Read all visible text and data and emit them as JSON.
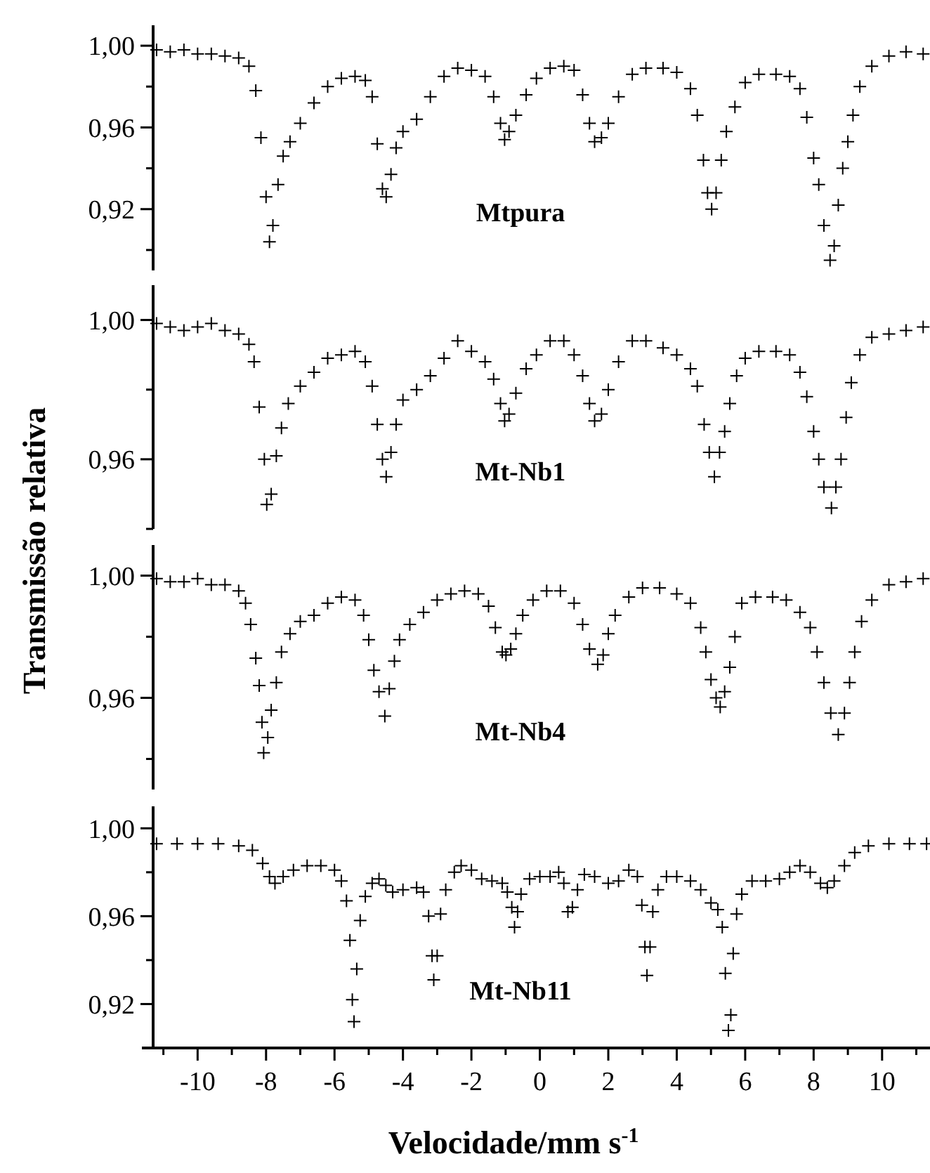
{
  "chart_data": [
    {
      "type": "scatter",
      "marker": "cross",
      "annotations": [
        "Mtpura"
      ],
      "xlim": [
        -11.3,
        11.4
      ],
      "ylim": [
        0.89,
        1.01
      ],
      "tick_labels": "y",
      "yticks": [
        {
          "value": 0.9,
          "label": null
        },
        {
          "value": 0.92,
          "label": "0,92"
        },
        {
          "value": 0.94,
          "label": null
        },
        {
          "value": 0.96,
          "label": "0,96"
        },
        {
          "value": 0.98,
          "label": null
        },
        {
          "value": 1.0,
          "label": "1,00"
        }
      ],
      "series": [
        {
          "color": "#000000",
          "x": [
            -11.2,
            -10.8,
            -10.4,
            -10.0,
            -9.6,
            -9.2,
            -8.8,
            -8.5,
            -8.3,
            -8.15,
            -8.0,
            -7.9,
            -7.8,
            -7.65,
            -7.5,
            -7.3,
            -7.0,
            -6.6,
            -6.2,
            -5.8,
            -5.4,
            -5.1,
            -4.9,
            -4.75,
            -4.6,
            -4.49,
            -4.35,
            -4.2,
            -4.0,
            -3.6,
            -3.2,
            -2.8,
            -2.4,
            -2.0,
            -1.6,
            -1.35,
            -1.15,
            -1.03,
            -0.9,
            -0.7,
            -0.4,
            -0.1,
            0.3,
            0.7,
            1.0,
            1.25,
            1.45,
            1.6,
            1.8,
            2.0,
            2.3,
            2.7,
            3.1,
            3.6,
            4.0,
            4.4,
            4.6,
            4.78,
            4.9,
            5.02,
            5.15,
            5.3,
            5.45,
            5.7,
            6.0,
            6.4,
            6.9,
            7.3,
            7.6,
            7.8,
            8.0,
            8.15,
            8.3,
            8.48,
            8.6,
            8.72,
            8.85,
            9.0,
            9.15,
            9.35,
            9.7,
            10.2,
            10.7,
            11.2
          ],
          "values": [
            0.998,
            0.997,
            0.998,
            0.996,
            0.996,
            0.995,
            0.994,
            0.99,
            0.978,
            0.955,
            0.926,
            0.904,
            0.912,
            0.932,
            0.946,
            0.953,
            0.962,
            0.972,
            0.98,
            0.984,
            0.985,
            0.983,
            0.975,
            0.952,
            0.93,
            0.926,
            0.937,
            0.95,
            0.958,
            0.964,
            0.975,
            0.985,
            0.989,
            0.988,
            0.985,
            0.975,
            0.962,
            0.954,
            0.958,
            0.966,
            0.976,
            0.984,
            0.989,
            0.99,
            0.988,
            0.976,
            0.962,
            0.953,
            0.955,
            0.962,
            0.975,
            0.986,
            0.989,
            0.989,
            0.987,
            0.979,
            0.966,
            0.944,
            0.928,
            0.92,
            0.928,
            0.944,
            0.958,
            0.97,
            0.982,
            0.986,
            0.986,
            0.985,
            0.979,
            0.965,
            0.945,
            0.932,
            0.912,
            0.895,
            0.902,
            0.922,
            0.94,
            0.953,
            0.966,
            0.98,
            0.99,
            0.995,
            0.997,
            0.996
          ]
        }
      ]
    },
    {
      "type": "scatter",
      "marker": "cross",
      "annotations": [
        "Mt-Nb1"
      ],
      "ylabel": "Transmissão relativa",
      "xlim": [
        -11.3,
        11.4
      ],
      "ylim": [
        0.94,
        1.01
      ],
      "tick_labels": "y",
      "yticks": [
        {
          "value": 0.94,
          "label": null
        },
        {
          "value": 0.96,
          "label": "0,96"
        },
        {
          "value": 0.98,
          "label": null
        },
        {
          "value": 1.0,
          "label": "1,00"
        }
      ],
      "series": [
        {
          "color": "#000000",
          "x": [
            -11.2,
            -10.8,
            -10.4,
            -10.0,
            -9.6,
            -9.2,
            -8.8,
            -8.5,
            -8.35,
            -8.2,
            -8.05,
            -7.98,
            -7.85,
            -7.7,
            -7.55,
            -7.35,
            -7.0,
            -6.6,
            -6.2,
            -5.8,
            -5.4,
            -5.1,
            -4.9,
            -4.75,
            -4.6,
            -4.49,
            -4.35,
            -4.2,
            -4.0,
            -3.6,
            -3.2,
            -2.8,
            -2.4,
            -2.0,
            -1.6,
            -1.35,
            -1.15,
            -1.03,
            -0.9,
            -0.7,
            -0.4,
            -0.1,
            0.3,
            0.7,
            1.0,
            1.25,
            1.45,
            1.6,
            1.8,
            2.0,
            2.3,
            2.7,
            3.1,
            3.6,
            4.0,
            4.4,
            4.6,
            4.8,
            4.95,
            5.1,
            5.25,
            5.4,
            5.55,
            5.75,
            6.0,
            6.4,
            6.9,
            7.3,
            7.6,
            7.8,
            8.0,
            8.15,
            8.3,
            8.52,
            8.65,
            8.8,
            8.95,
            9.1,
            9.35,
            9.7,
            10.2,
            10.7,
            11.2
          ],
          "values": [
            0.999,
            0.998,
            0.997,
            0.998,
            0.999,
            0.997,
            0.996,
            0.993,
            0.988,
            0.975,
            0.96,
            0.947,
            0.95,
            0.961,
            0.969,
            0.976,
            0.981,
            0.985,
            0.989,
            0.99,
            0.991,
            0.988,
            0.981,
            0.97,
            0.96,
            0.955,
            0.962,
            0.97,
            0.977,
            0.98,
            0.984,
            0.989,
            0.994,
            0.991,
            0.988,
            0.983,
            0.976,
            0.971,
            0.973,
            0.979,
            0.986,
            0.99,
            0.994,
            0.994,
            0.99,
            0.984,
            0.976,
            0.971,
            0.973,
            0.98,
            0.988,
            0.994,
            0.994,
            0.992,
            0.99,
            0.986,
            0.981,
            0.97,
            0.962,
            0.955,
            0.962,
            0.968,
            0.976,
            0.984,
            0.989,
            0.991,
            0.991,
            0.99,
            0.985,
            0.978,
            0.968,
            0.96,
            0.952,
            0.946,
            0.952,
            0.96,
            0.972,
            0.982,
            0.99,
            0.995,
            0.996,
            0.997,
            0.998
          ]
        }
      ]
    },
    {
      "type": "scatter",
      "marker": "cross",
      "annotations": [
        "Mt-Nb4"
      ],
      "xlim": [
        -11.3,
        11.4
      ],
      "ylim": [
        0.93,
        1.01
      ],
      "tick_labels": "y",
      "yticks": [
        {
          "value": 0.94,
          "label": null
        },
        {
          "value": 0.96,
          "label": "0,96"
        },
        {
          "value": 0.98,
          "label": null
        },
        {
          "value": 1.0,
          "label": "1,00"
        }
      ],
      "series": [
        {
          "color": "#000000",
          "x": [
            -11.2,
            -10.8,
            -10.4,
            -10.0,
            -9.6,
            -9.2,
            -8.8,
            -8.6,
            -8.45,
            -8.3,
            -8.2,
            -8.12,
            -8.07,
            -7.95,
            -7.85,
            -7.7,
            -7.55,
            -7.3,
            -7.0,
            -6.6,
            -6.2,
            -5.8,
            -5.4,
            -5.15,
            -5.0,
            -4.85,
            -4.7,
            -4.53,
            -4.4,
            -4.25,
            -4.1,
            -3.8,
            -3.4,
            -3.0,
            -2.6,
            -2.2,
            -1.8,
            -1.5,
            -1.3,
            -1.1,
            -0.99,
            -0.85,
            -0.7,
            -0.5,
            -0.2,
            0.2,
            0.6,
            1.0,
            1.25,
            1.45,
            1.69,
            1.85,
            2.0,
            2.2,
            2.6,
            3.0,
            3.5,
            4.0,
            4.4,
            4.7,
            4.85,
            5.0,
            5.15,
            5.27,
            5.4,
            5.55,
            5.7,
            5.9,
            6.3,
            6.8,
            7.2,
            7.6,
            7.9,
            8.1,
            8.3,
            8.5,
            8.72,
            8.9,
            9.05,
            9.2,
            9.4,
            9.7,
            10.2,
            10.7,
            11.2
          ],
          "values": [
            0.999,
            0.998,
            0.998,
            0.999,
            0.997,
            0.997,
            0.995,
            0.991,
            0.984,
            0.973,
            0.964,
            0.952,
            0.942,
            0.947,
            0.956,
            0.965,
            0.975,
            0.981,
            0.985,
            0.987,
            0.991,
            0.993,
            0.992,
            0.987,
            0.979,
            0.969,
            0.962,
            0.954,
            0.963,
            0.972,
            0.979,
            0.984,
            0.988,
            0.992,
            0.994,
            0.995,
            0.994,
            0.99,
            0.983,
            0.975,
            0.974,
            0.976,
            0.981,
            0.987,
            0.992,
            0.995,
            0.995,
            0.991,
            0.984,
            0.976,
            0.971,
            0.974,
            0.981,
            0.987,
            0.993,
            0.996,
            0.996,
            0.994,
            0.991,
            0.983,
            0.975,
            0.966,
            0.96,
            0.957,
            0.962,
            0.97,
            0.98,
            0.991,
            0.993,
            0.993,
            0.992,
            0.988,
            0.983,
            0.975,
            0.965,
            0.955,
            0.948,
            0.955,
            0.965,
            0.975,
            0.985,
            0.992,
            0.997,
            0.998,
            0.999
          ]
        }
      ]
    },
    {
      "type": "scatter",
      "marker": "cross",
      "annotations": [
        "Mt-Nb11"
      ],
      "xlabel": "Velocidade/mm s$^{-1}$",
      "xlim": [
        -11.3,
        11.4
      ],
      "ylim": [
        0.9,
        1.01
      ],
      "xticks": [
        {
          "value": -11,
          "label": null
        },
        -10,
        {
          "value": -9,
          "label": null
        },
        -8,
        {
          "value": -7,
          "label": null
        },
        -6,
        {
          "value": -5,
          "label": null
        },
        -4,
        {
          "value": -3,
          "label": null
        },
        -2,
        {
          "value": -1,
          "label": null
        },
        0,
        {
          "value": 1,
          "label": null
        },
        2,
        {
          "value": 3,
          "label": null
        },
        4,
        {
          "value": 5,
          "label": null
        },
        6,
        {
          "value": 7,
          "label": null
        },
        8,
        {
          "value": 9,
          "label": null
        },
        10,
        {
          "value": 11,
          "label": null
        }
      ],
      "yticks": [
        {
          "value": 0.92,
          "label": "0,92"
        },
        {
          "value": 0.94,
          "label": null
        },
        {
          "value": 0.96,
          "label": "0,96"
        },
        {
          "value": 0.98,
          "label": null
        },
        {
          "value": 1.0,
          "label": "1,00"
        }
      ],
      "series": [
        {
          "color": "#000000",
          "x": [
            -11.2,
            -10.6,
            -10.0,
            -9.4,
            -8.8,
            -8.4,
            -8.1,
            -7.9,
            -7.74,
            -7.5,
            -7.2,
            -6.8,
            -6.4,
            -6.0,
            -5.8,
            -5.65,
            -5.55,
            -5.48,
            -5.43,
            -5.35,
            -5.25,
            -5.1,
            -4.9,
            -4.7,
            -4.5,
            -4.3,
            -4.0,
            -3.6,
            -3.4,
            -3.25,
            -3.15,
            -3.1,
            -3.0,
            -2.9,
            -2.75,
            -2.5,
            -2.3,
            -2.0,
            -1.7,
            -1.4,
            -1.1,
            -0.95,
            -0.82,
            -0.74,
            -0.65,
            -0.55,
            -0.3,
            0.0,
            0.3,
            0.55,
            0.7,
            0.82,
            0.95,
            1.1,
            1.3,
            1.6,
            2.0,
            2.3,
            2.6,
            2.85,
            2.98,
            3.07,
            3.13,
            3.22,
            3.3,
            3.45,
            3.7,
            4.0,
            4.4,
            4.7,
            5.0,
            5.2,
            5.33,
            5.42,
            5.51,
            5.58,
            5.65,
            5.75,
            5.9,
            6.2,
            6.6,
            7.0,
            7.3,
            7.6,
            7.9,
            8.2,
            8.4,
            8.6,
            8.9,
            9.2,
            9.6,
            10.2,
            10.8,
            11.3
          ],
          "values": [
            0.993,
            0.993,
            0.993,
            0.993,
            0.992,
            0.99,
            0.984,
            0.978,
            0.975,
            0.978,
            0.981,
            0.983,
            0.983,
            0.981,
            0.976,
            0.967,
            0.949,
            0.922,
            0.912,
            0.936,
            0.958,
            0.969,
            0.975,
            0.977,
            0.974,
            0.971,
            0.972,
            0.973,
            0.971,
            0.96,
            0.942,
            0.931,
            0.942,
            0.961,
            0.972,
            0.98,
            0.983,
            0.981,
            0.977,
            0.976,
            0.975,
            0.971,
            0.964,
            0.955,
            0.962,
            0.97,
            0.977,
            0.978,
            0.978,
            0.98,
            0.975,
            0.962,
            0.964,
            0.972,
            0.979,
            0.978,
            0.975,
            0.976,
            0.981,
            0.978,
            0.965,
            0.946,
            0.933,
            0.946,
            0.962,
            0.972,
            0.978,
            0.978,
            0.976,
            0.972,
            0.966,
            0.963,
            0.955,
            0.934,
            0.908,
            0.915,
            0.943,
            0.961,
            0.97,
            0.976,
            0.976,
            0.977,
            0.98,
            0.983,
            0.98,
            0.975,
            0.973,
            0.976,
            0.983,
            0.989,
            0.992,
            0.993,
            0.993,
            0.993
          ]
        }
      ]
    }
  ]
}
